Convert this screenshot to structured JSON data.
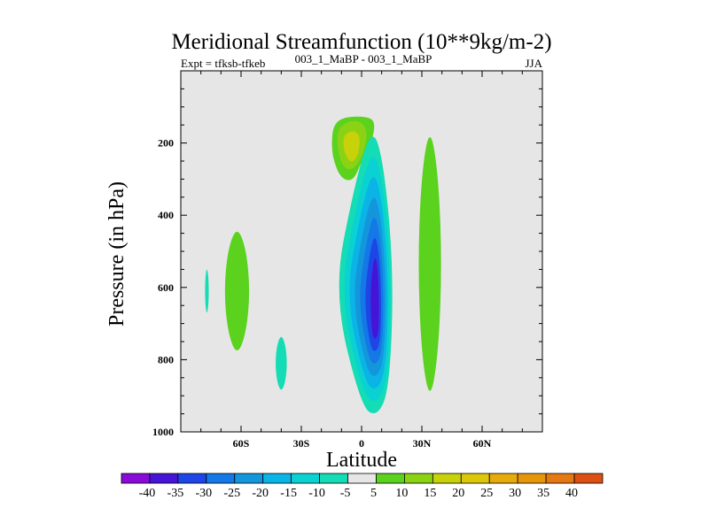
{
  "chart_data": {
    "type": "contour",
    "title": "Meridional Streamfunction (10**9kg/m-2)",
    "left_subtitle": "Expt = tfksb-tfkeb",
    "center_subtitle": "003_1_MaBP - 003_1_MaBP",
    "right_subtitle": "JJA",
    "xlabel": "Latitude",
    "ylabel": "Pressure (in hPa)",
    "xlim": [
      -90,
      90
    ],
    "ylim": [
      1000,
      0
    ],
    "x_tick_values": [
      -60,
      -30,
      0,
      30,
      60
    ],
    "x_tick_labels": [
      "60S",
      "30S",
      "0",
      "30N",
      "60N"
    ],
    "y_tick_values": [
      200,
      400,
      600,
      800,
      1000
    ],
    "y_tick_labels": [
      "200",
      "400",
      "600",
      "800",
      "1000"
    ],
    "background_range": [
      -5,
      5
    ],
    "colorbar": {
      "labels": [
        "-40",
        "-35",
        "-30",
        "-25",
        "-20",
        "-15",
        "-10",
        "-5",
        "5",
        "10",
        "15",
        "20",
        "25",
        "30",
        "35",
        "40"
      ],
      "colors": [
        "#8a0ad8",
        "#4614d6",
        "#1e46e6",
        "#1478e6",
        "#1496dc",
        "#0ab4e6",
        "#0ad2d2",
        "#14dcb4",
        "#e6e6e6",
        "#5ad21e",
        "#8cd214",
        "#c8d20a",
        "#dcc80a",
        "#e6aa0a",
        "#e6960a",
        "#e67814",
        "#dc5014"
      ]
    },
    "features": [
      {
        "name": "sh-high-lat-positive",
        "lat": -62,
        "p_top": 430,
        "p_bottom": 790,
        "half_width": 6.5,
        "level": 5
      },
      {
        "name": "far-south-negative-sliver",
        "lat": -77,
        "p_top": 545,
        "p_bottom": 675,
        "half_width": 1,
        "level": -5
      },
      {
        "name": "sh-midlat-negative",
        "lat": -40,
        "p_top": 730,
        "p_bottom": 890,
        "half_width": 3,
        "level": -5
      },
      {
        "name": "upper-positive-cell",
        "lat": -5,
        "p_top": 125,
        "p_bottom": 310,
        "levels": [
          5,
          10,
          15
        ]
      },
      {
        "name": "main-negative-cell",
        "lat": 5,
        "p_top": 150,
        "p_bottom": 960,
        "min_value": -35
      },
      {
        "name": "nh-tropical-positive",
        "lat": 34,
        "p_top": 150,
        "p_bottom": 920,
        "half_width": 6,
        "level": 5
      }
    ]
  }
}
